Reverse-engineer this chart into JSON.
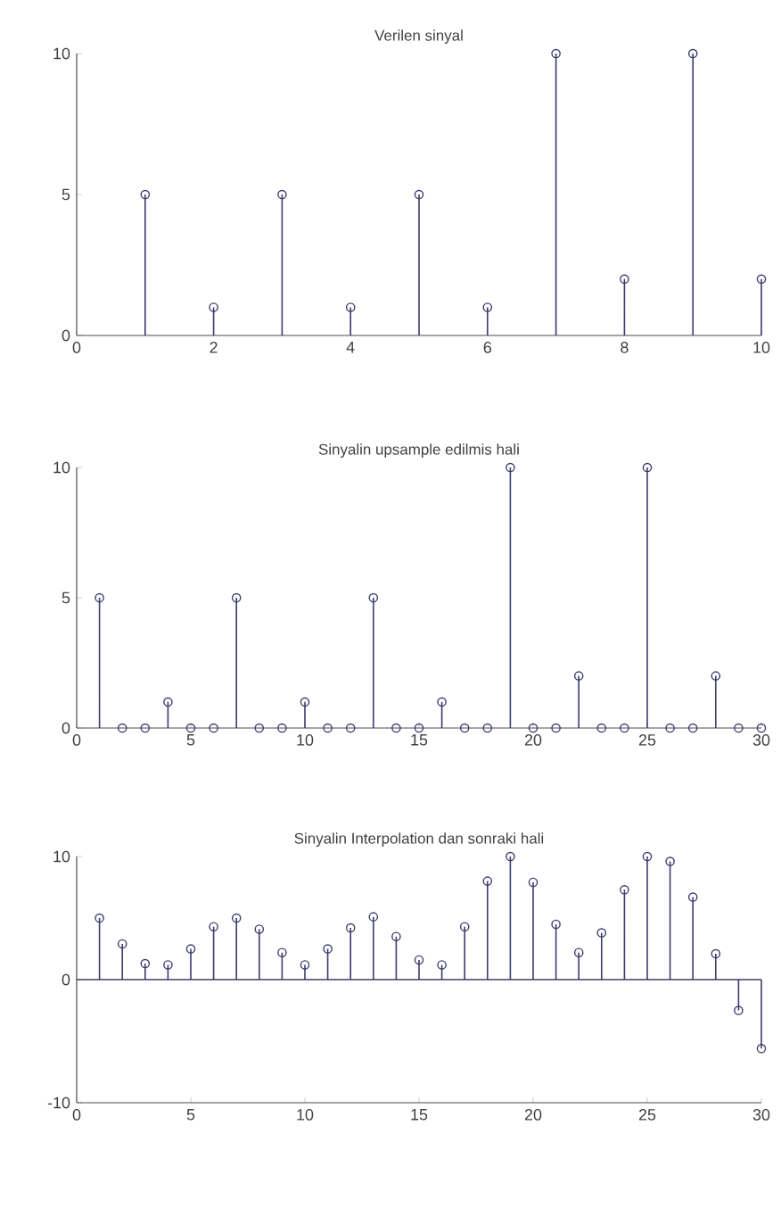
{
  "chart_data": [
    {
      "type": "lollipop",
      "title": "Verilen sinyal",
      "x": [
        1,
        2,
        3,
        4,
        5,
        6,
        7,
        8,
        9,
        10
      ],
      "values": [
        5,
        1,
        5,
        1,
        5,
        1,
        10,
        2,
        10,
        2
      ],
      "color": "#3c3c6e",
      "marker": "circle",
      "grid": false,
      "xlim": [
        0,
        10
      ],
      "ylim": [
        0,
        10
      ],
      "xticks": [
        0,
        2,
        4,
        6,
        8,
        10
      ],
      "yticks": [
        0,
        5,
        10
      ]
    },
    {
      "type": "lollipop",
      "title": "Sinyalin upsample edilmis hali",
      "x": [
        1,
        2,
        3,
        4,
        5,
        6,
        7,
        8,
        9,
        10,
        11,
        12,
        13,
        14,
        15,
        16,
        17,
        18,
        19,
        20,
        21,
        22,
        23,
        24,
        25,
        26,
        27,
        28,
        29,
        30
      ],
      "values": [
        5,
        0,
        0,
        1,
        0,
        0,
        5,
        0,
        0,
        1,
        0,
        0,
        5,
        0,
        0,
        1,
        0,
        0,
        10,
        0,
        0,
        2,
        0,
        0,
        10,
        0,
        0,
        2,
        0,
        0
      ],
      "color": "#3c3c6e",
      "marker": "circle",
      "grid": false,
      "xlim": [
        0,
        30
      ],
      "ylim": [
        0,
        10
      ],
      "xticks": [
        0,
        5,
        10,
        15,
        20,
        25,
        30
      ],
      "yticks": [
        0,
        5,
        10
      ]
    },
    {
      "type": "lollipop",
      "title": "Sinyalin Interpolation dan sonraki hali",
      "x": [
        1,
        2,
        3,
        4,
        5,
        6,
        7,
        8,
        9,
        10,
        11,
        12,
        13,
        14,
        15,
        16,
        17,
        18,
        19,
        20,
        21,
        22,
        23,
        24,
        25,
        26,
        27,
        28,
        29,
        30
      ],
      "values": [
        5.0,
        2.9,
        1.3,
        1.2,
        2.5,
        4.3,
        5.0,
        4.1,
        2.2,
        1.2,
        2.5,
        4.2,
        5.1,
        3.5,
        1.6,
        1.2,
        4.3,
        8.0,
        10.0,
        7.9,
        4.5,
        2.2,
        3.8,
        7.3,
        10.0,
        9.6,
        6.7,
        2.1,
        -2.5,
        -5.6
      ],
      "color": "#3c3c6e",
      "marker": "circle",
      "grid": false,
      "xlim": [
        0,
        30
      ],
      "ylim": [
        -10,
        10
      ],
      "ref_lines": [
        {
          "axis": "y",
          "value": 0
        }
      ],
      "xticks": [
        0,
        5,
        10,
        15,
        20,
        25,
        30
      ],
      "yticks": [
        -10,
        0,
        10
      ]
    }
  ]
}
